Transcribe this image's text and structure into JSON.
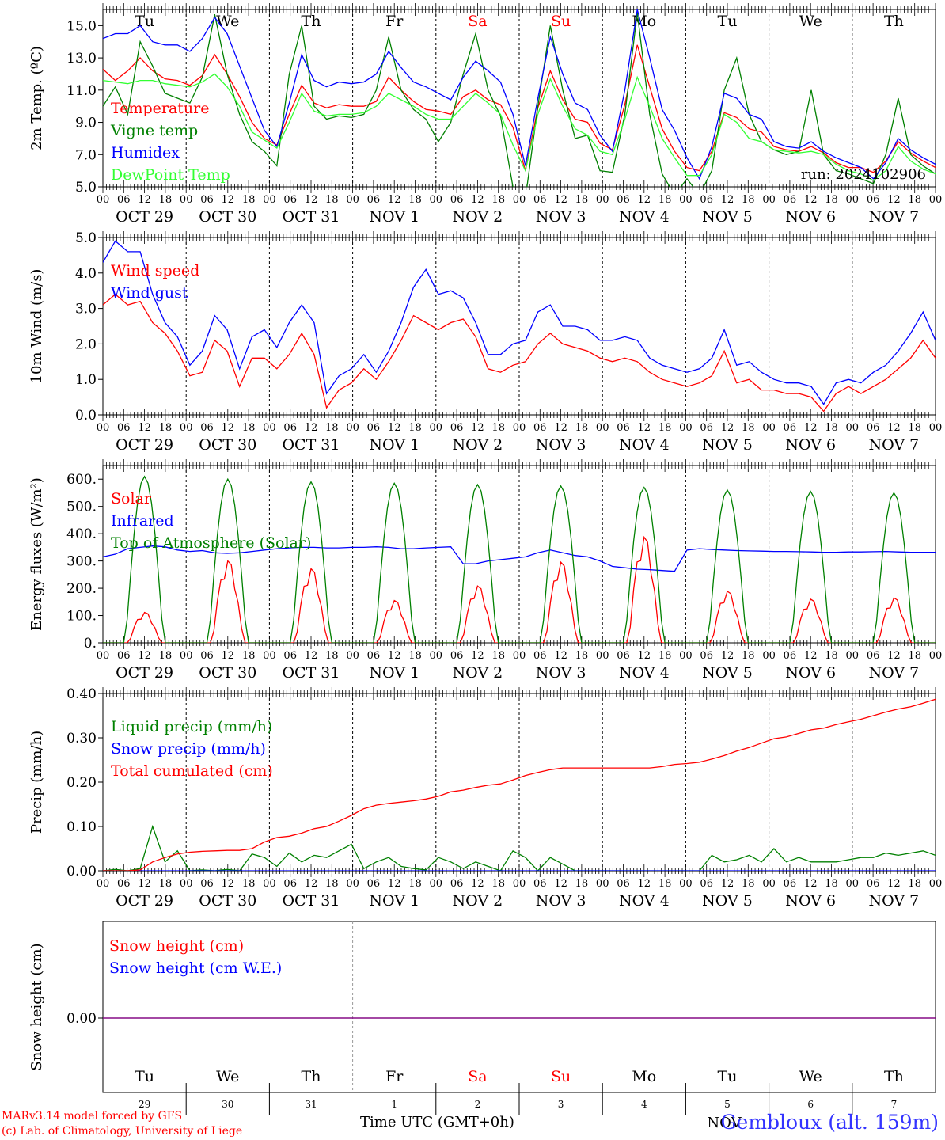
{
  "footer": {
    "credit_1": "MARv3.14 model forced by GFS",
    "credit_2": "(c) Lab. of Climatology, University of Liege",
    "xlabel": "Time UTC (GMT+0h)",
    "station": "Gembloux (alt. 159m)",
    "month_label": "NOV"
  },
  "colors": {
    "red": "#ff0000",
    "green": "#008000",
    "blue": "#0000ff",
    "lightgreen": "#33ff33",
    "purple": "#800080",
    "weekend": "#ff0000"
  },
  "days": {
    "weekdays": [
      "Tu",
      "We",
      "Th",
      "Fr",
      "Sa",
      "Su",
      "Mo",
      "Tu",
      "We",
      "Th"
    ],
    "weekend_index": [
      4,
      5
    ],
    "date_labels": [
      "OCT 29",
      "OCT 30",
      "OCT 31",
      "NOV  1",
      "NOV  2",
      "NOV  3",
      "NOV  4",
      "NOV  5",
      "NOV  6",
      "NOV  7"
    ],
    "day_numbers": [
      "29",
      "30",
      "31",
      "1",
      "2",
      "3",
      "4",
      "5",
      "6",
      "7"
    ],
    "hour_labels": [
      "00",
      "06",
      "12",
      "18"
    ]
  },
  "chart_data": [
    {
      "type": "line",
      "name": "temperature",
      "ylabel": "2m Temp. (ºC)",
      "ylim": [
        5.0,
        16.0
      ],
      "yticks": [
        "5.0",
        "7.0",
        "9.0",
        "11.0",
        "13.0",
        "15.0"
      ],
      "annotation": "run: 2024102906",
      "series": [
        {
          "name": "Temperature",
          "color": "red",
          "values": [
            12.3,
            11.6,
            12.2,
            13.0,
            12.2,
            11.7,
            11.6,
            11.3,
            11.9,
            13.2,
            12.0,
            10.6,
            9.0,
            8.0,
            7.6,
            9.5,
            11.3,
            10.2,
            9.9,
            10.1,
            10.0,
            10.0,
            10.3,
            11.8,
            11.0,
            10.3,
            9.8,
            9.7,
            9.5,
            10.6,
            11.0,
            10.4,
            10.1,
            8.7,
            6.0,
            9.9,
            12.2,
            10.4,
            9.2,
            9.0,
            7.7,
            7.3,
            10.1,
            13.8,
            11.2,
            8.6,
            7.2,
            6.2,
            6.0,
            7.2,
            9.6,
            9.3,
            8.6,
            8.4,
            7.5,
            7.3,
            7.2,
            7.5,
            7.1,
            6.5,
            6.2,
            6.2,
            5.9,
            6.6,
            7.8,
            7.1,
            6.6,
            6.2
          ]
        },
        {
          "name": "Vigne temp",
          "color": "green",
          "values": [
            10.0,
            11.2,
            9.5,
            14.0,
            12.5,
            10.8,
            10.5,
            10.2,
            11.8,
            15.7,
            12.0,
            9.5,
            7.8,
            7.2,
            6.3,
            12.0,
            15.0,
            10.0,
            9.2,
            9.4,
            9.3,
            9.5,
            11.0,
            14.3,
            11.0,
            9.8,
            9.2,
            7.8,
            9.0,
            12.0,
            14.5,
            11.0,
            9.4,
            5.0,
            4.3,
            10.0,
            15.0,
            11.0,
            8.0,
            8.2,
            6.0,
            5.9,
            9.5,
            15.8,
            9.5,
            5.8,
            4.5,
            5.5,
            4.5,
            6.0,
            11.0,
            13.0,
            9.5,
            7.8,
            7.3,
            7.0,
            7.2,
            11.0,
            7.0,
            6.0,
            5.8,
            5.5,
            5.2,
            7.0,
            10.5,
            7.0,
            6.3,
            5.8
          ]
        },
        {
          "name": "Humidex",
          "color": "blue",
          "values": [
            14.2,
            14.5,
            14.5,
            15.0,
            14.0,
            13.8,
            13.8,
            13.4,
            14.2,
            15.5,
            14.5,
            12.5,
            10.5,
            8.5,
            7.5,
            10.2,
            13.2,
            11.6,
            11.2,
            11.5,
            11.4,
            11.5,
            12.0,
            13.4,
            12.4,
            11.5,
            11.2,
            10.8,
            10.4,
            11.8,
            12.8,
            12.2,
            11.5,
            9.5,
            6.3,
            10.5,
            14.3,
            12.0,
            10.2,
            9.8,
            8.2,
            7.2,
            11.0,
            16.0,
            13.0,
            9.8,
            8.5,
            6.8,
            5.5,
            7.5,
            10.8,
            10.5,
            9.5,
            9.2,
            7.8,
            7.5,
            7.4,
            7.8,
            7.2,
            6.8,
            6.5,
            6.2,
            5.5,
            6.5,
            8.0,
            7.3,
            6.8,
            6.4
          ]
        },
        {
          "name": "DewPoint Temp",
          "color": "lightgreen",
          "values": [
            11.6,
            11.5,
            11.4,
            11.6,
            11.6,
            11.4,
            11.3,
            11.2,
            11.5,
            12.0,
            11.2,
            10.0,
            8.4,
            7.9,
            7.4,
            9.0,
            10.8,
            9.7,
            9.4,
            9.5,
            9.5,
            9.6,
            10.0,
            10.8,
            10.4,
            10.0,
            9.5,
            9.2,
            9.2,
            10.0,
            10.8,
            10.2,
            9.5,
            7.6,
            6.0,
            9.5,
            11.7,
            10.0,
            8.6,
            8.2,
            7.2,
            7.0,
            9.2,
            11.8,
            10.0,
            8.0,
            6.8,
            5.7,
            5.7,
            7.0,
            9.5,
            9.0,
            8.0,
            7.8,
            7.3,
            7.2,
            7.1,
            7.2,
            7.0,
            6.4,
            6.0,
            5.8,
            5.4,
            6.0,
            7.5,
            6.6,
            6.1,
            5.8
          ]
        }
      ]
    },
    {
      "type": "line",
      "name": "wind",
      "ylabel": "10m Wind (m/s)",
      "ylim": [
        0.0,
        5.0
      ],
      "yticks": [
        "0.0",
        "1.0",
        "2.0",
        "3.0",
        "4.0",
        "5.0"
      ],
      "series": [
        {
          "name": "Wind speed",
          "color": "red",
          "values": [
            3.1,
            3.4,
            3.1,
            3.2,
            2.6,
            2.3,
            1.8,
            1.1,
            1.2,
            2.1,
            1.8,
            0.8,
            1.6,
            1.6,
            1.3,
            1.7,
            2.3,
            1.7,
            0.2,
            0.7,
            0.9,
            1.3,
            1.0,
            1.5,
            2.1,
            2.8,
            2.6,
            2.4,
            2.6,
            2.7,
            2.2,
            1.3,
            1.2,
            1.4,
            1.5,
            2.0,
            2.3,
            2.0,
            1.9,
            1.8,
            1.6,
            1.5,
            1.6,
            1.5,
            1.2,
            1.0,
            0.9,
            0.8,
            0.9,
            1.1,
            1.8,
            0.9,
            1.0,
            0.7,
            0.7,
            0.6,
            0.6,
            0.5,
            0.1,
            0.6,
            0.8,
            0.6,
            0.8,
            1.0,
            1.3,
            1.6,
            2.1,
            1.6
          ]
        },
        {
          "name": "Wind gust",
          "color": "blue",
          "values": [
            4.3,
            4.9,
            4.6,
            4.6,
            3.4,
            2.6,
            2.2,
            1.4,
            1.8,
            2.8,
            2.4,
            1.3,
            2.2,
            2.4,
            1.9,
            2.6,
            3.1,
            2.6,
            0.6,
            1.1,
            1.3,
            1.7,
            1.2,
            1.8,
            2.6,
            3.6,
            4.1,
            3.4,
            3.5,
            3.3,
            2.6,
            1.7,
            1.7,
            2.0,
            2.1,
            2.9,
            3.1,
            2.5,
            2.5,
            2.4,
            2.1,
            2.1,
            2.2,
            2.1,
            1.6,
            1.4,
            1.3,
            1.2,
            1.3,
            1.6,
            2.4,
            1.4,
            1.5,
            1.2,
            1.0,
            0.9,
            0.9,
            0.8,
            0.3,
            0.9,
            1.0,
            0.9,
            1.2,
            1.4,
            1.8,
            2.3,
            2.9,
            2.1
          ]
        }
      ]
    },
    {
      "type": "line",
      "name": "energy",
      "ylabel": "Energy fluxes (W/m²)",
      "ylim": [
        0,
        650
      ],
      "yticks": [
        "0.",
        "100.",
        "200.",
        "300.",
        "400.",
        "500.",
        "600."
      ],
      "yticks_values": [
        0,
        100,
        200,
        300,
        400,
        500,
        600
      ],
      "daily_peaks": {
        "solar": [
          115,
          310,
          280,
          160,
          215,
          305,
          400,
          195,
          165,
          170
        ],
        "toa": [
          610,
          600,
          590,
          585,
          580,
          575,
          570,
          560,
          555,
          550
        ]
      },
      "series": [
        {
          "name": "Solar",
          "color": "red",
          "values": []
        },
        {
          "name": "Infrared",
          "color": "blue",
          "values": [
            315,
            325,
            345,
            350,
            355,
            352,
            340,
            335,
            338,
            330,
            328,
            330,
            335,
            340,
            345,
            348,
            350,
            350,
            348,
            348,
            350,
            350,
            352,
            350,
            345,
            345,
            348,
            350,
            352,
            290,
            290,
            300,
            305,
            310,
            315,
            330,
            340,
            330,
            320,
            315,
            300,
            280,
            275,
            270,
            268,
            265,
            262,
            340,
            345,
            342,
            340,
            338,
            337,
            336,
            335,
            335,
            334,
            333,
            332,
            332,
            333,
            333,
            334,
            335,
            333,
            332,
            332,
            332
          ]
        },
        {
          "name": "Top of Atmosphere (Solar)",
          "color": "green",
          "values": []
        }
      ]
    },
    {
      "type": "line",
      "name": "precip",
      "ylabel": "Precip (mm/h)",
      "ylim": [
        0.0,
        0.4
      ],
      "yticks": [
        "0.00",
        "0.10",
        "0.20",
        "0.30",
        "0.40"
      ],
      "series": [
        {
          "name": "Liquid precip (mm/h)",
          "color": "green",
          "values": [
            0.0,
            0.003,
            0.0,
            0.005,
            0.1,
            0.02,
            0.045,
            0.0,
            0.002,
            0.0,
            0.003,
            0.0,
            0.038,
            0.03,
            0.01,
            0.04,
            0.02,
            0.035,
            0.03,
            0.045,
            0.06,
            0.005,
            0.02,
            0.03,
            0.01,
            0.005,
            0.002,
            0.03,
            0.02,
            0.005,
            0.02,
            0.01,
            0.0,
            0.045,
            0.03,
            0.0,
            0.03,
            0.015,
            0.0,
            0.0,
            0.0,
            0.0,
            0.0,
            0.0,
            0.0,
            0.0,
            0.0,
            0.0,
            0.0,
            0.035,
            0.02,
            0.025,
            0.035,
            0.02,
            0.05,
            0.02,
            0.03,
            0.02,
            0.02,
            0.02,
            0.025,
            0.03,
            0.03,
            0.04,
            0.035,
            0.04,
            0.045,
            0.035
          ]
        },
        {
          "name": "Snow precip (mm/h)",
          "color": "blue",
          "values": [
            0,
            0,
            0,
            0,
            0,
            0,
            0,
            0,
            0,
            0,
            0,
            0,
            0,
            0,
            0,
            0,
            0,
            0,
            0,
            0,
            0,
            0,
            0,
            0,
            0,
            0,
            0,
            0,
            0,
            0,
            0,
            0,
            0,
            0,
            0,
            0,
            0,
            0,
            0,
            0,
            0,
            0,
            0,
            0,
            0,
            0,
            0,
            0,
            0,
            0,
            0,
            0,
            0,
            0,
            0,
            0,
            0,
            0,
            0,
            0,
            0,
            0,
            0,
            0,
            0,
            0,
            0,
            0
          ]
        },
        {
          "name": "Total cumulated (cm)",
          "color": "red",
          "values": [
            0.0,
            0.0,
            0.0,
            0.002,
            0.02,
            0.03,
            0.038,
            0.042,
            0.044,
            0.045,
            0.046,
            0.046,
            0.05,
            0.065,
            0.075,
            0.078,
            0.085,
            0.095,
            0.1,
            0.112,
            0.125,
            0.14,
            0.148,
            0.152,
            0.155,
            0.158,
            0.162,
            0.168,
            0.178,
            0.182,
            0.188,
            0.193,
            0.196,
            0.205,
            0.215,
            0.222,
            0.228,
            0.232,
            0.232,
            0.232,
            0.232,
            0.232,
            0.232,
            0.232,
            0.232,
            0.235,
            0.24,
            0.242,
            0.245,
            0.252,
            0.26,
            0.27,
            0.278,
            0.288,
            0.298,
            0.302,
            0.31,
            0.318,
            0.322,
            0.33,
            0.336,
            0.342,
            0.35,
            0.358,
            0.365,
            0.37,
            0.378,
            0.387
          ]
        }
      ]
    },
    {
      "type": "line",
      "name": "snow",
      "ylabel": "Snow height (cm)",
      "yticks": [
        "0.00"
      ],
      "series": [
        {
          "name": "Snow height (cm)",
          "color": "red",
          "values": [
            0,
            0
          ]
        },
        {
          "name": "Snow height (cm W.E.)",
          "color": "blue",
          "values": [
            0,
            0
          ]
        }
      ]
    }
  ]
}
